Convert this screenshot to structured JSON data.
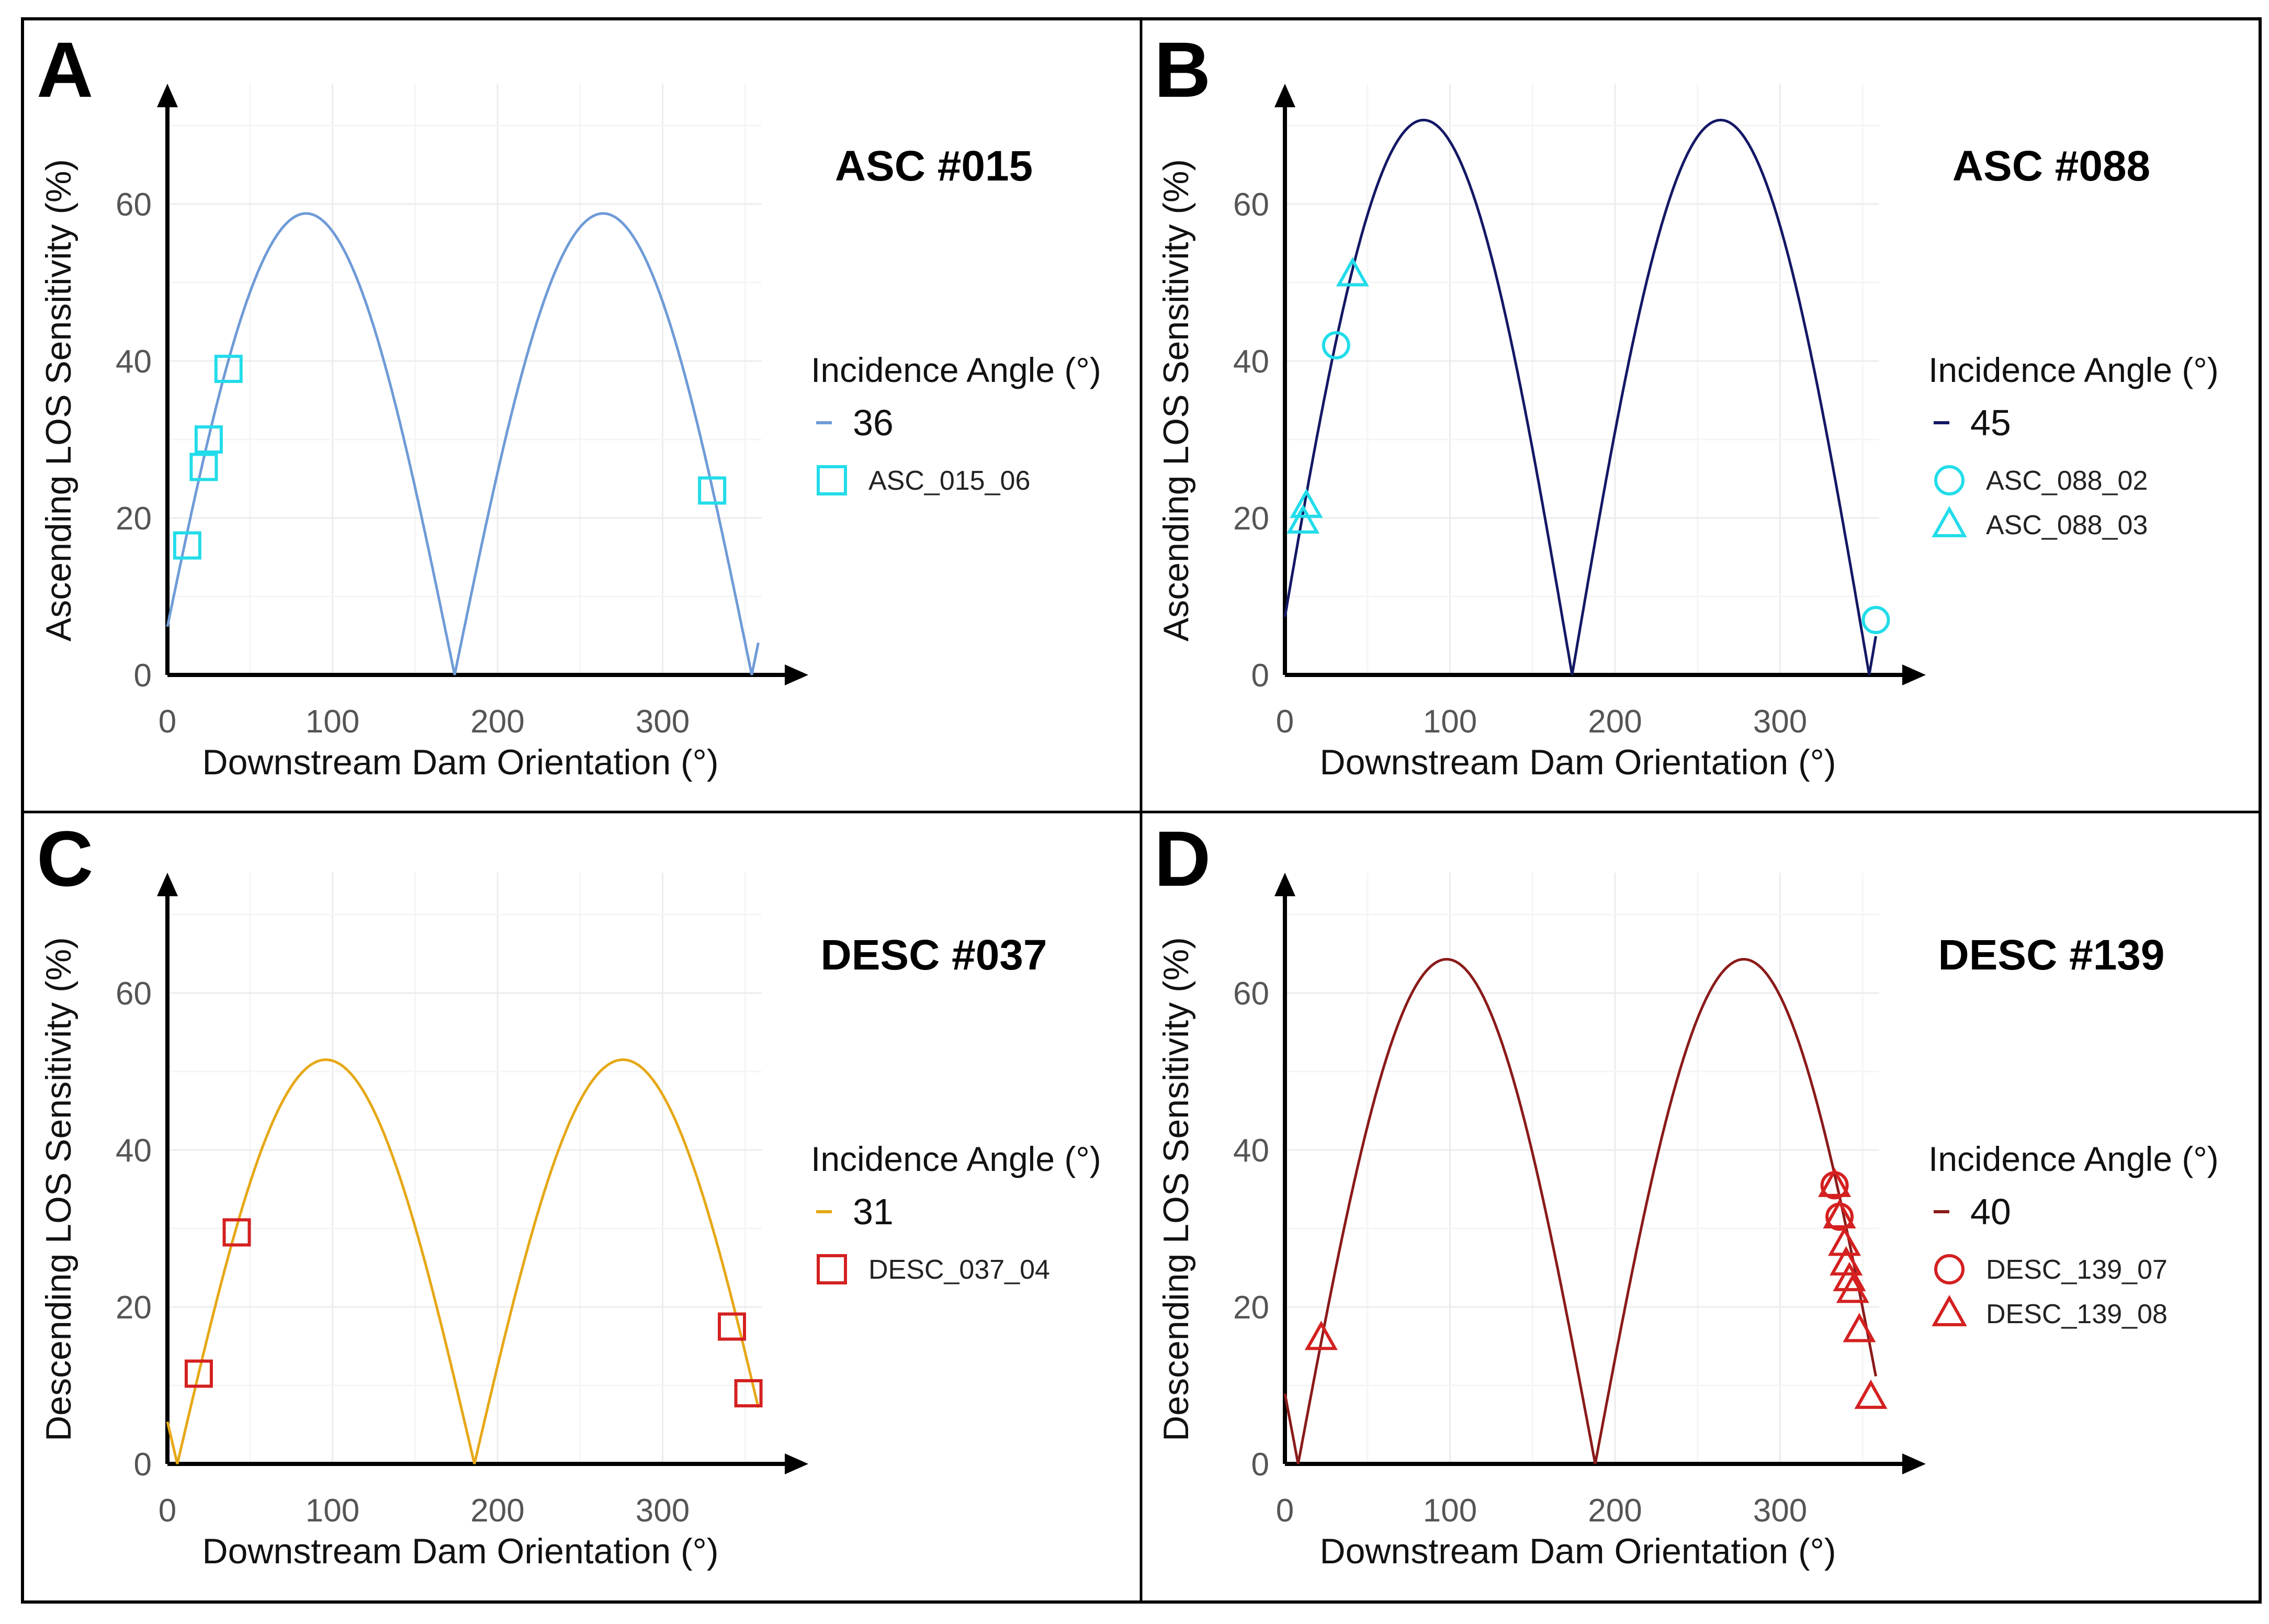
{
  "chart_data": [
    {
      "type": "line",
      "panel_letter": "A",
      "title": "ASC #015",
      "xlabel": "Downstream Dam Orientation (°)",
      "ylabel": "Ascending LOS Sensitivity (%)",
      "xticks": [
        0,
        100,
        200,
        300
      ],
      "yticks": [
        0,
        20,
        40,
        60
      ],
      "xlim": [
        0,
        360
      ],
      "ylim": [
        0,
        72
      ],
      "legend_title": "Incidence Angle (°)",
      "series": [
        {
          "name": "36",
          "color": "#6f9bd7",
          "amplitude": 58.8,
          "min_at": 174,
          "x_range": [
            0,
            358
          ]
        }
      ],
      "points": [
        {
          "label": "ASC_015_06",
          "marker": "square",
          "color": "#22dcea",
          "x": [
            12,
            22,
            25,
            37,
            330
          ],
          "y": [
            16.5,
            26.5,
            30,
            39,
            23.5
          ]
        }
      ]
    },
    {
      "type": "line",
      "panel_letter": "B",
      "title": "ASC #088",
      "xlabel": "Downstream Dam Orientation (°)",
      "ylabel": "Ascending LOS Sensitivity (%)",
      "xticks": [
        0,
        100,
        200,
        300
      ],
      "yticks": [
        0,
        20,
        40,
        60
      ],
      "xlim": [
        0,
        360
      ],
      "ylim": [
        0,
        72
      ],
      "legend_title": "Incidence Angle (°)",
      "series": [
        {
          "name": "45",
          "color": "#141865",
          "amplitude": 70.7,
          "min_at": 174,
          "x_range": [
            0,
            358
          ]
        }
      ],
      "points": [
        {
          "label": "ASC_088_02",
          "marker": "circle",
          "color": "#22dcea",
          "x": [
            31,
            358
          ],
          "y": [
            42,
            7
          ]
        },
        {
          "label": "ASC_088_03",
          "marker": "triangle",
          "color": "#22dcea",
          "x": [
            11,
            13,
            41
          ],
          "y": [
            19.5,
            21.5,
            51
          ]
        }
      ]
    },
    {
      "type": "line",
      "panel_letter": "C",
      "title": "DESC #037",
      "xlabel": "Downstream Dam Orientation (°)",
      "ylabel": "Descending LOS Sensitivity (%)",
      "xticks": [
        0,
        100,
        200,
        300
      ],
      "yticks": [
        0,
        20,
        40,
        60
      ],
      "xlim": [
        0,
        360
      ],
      "ylim": [
        0,
        72
      ],
      "legend_title": "Incidence Angle (°)",
      "series": [
        {
          "name": "31",
          "color": "#e6a817",
          "amplitude": 51.5,
          "min_at": 186,
          "x_range": [
            0,
            358
          ]
        }
      ],
      "points": [
        {
          "label": "DESC_037_04",
          "marker": "square",
          "color": "#d42020",
          "x": [
            19,
            42,
            342,
            352
          ],
          "y": [
            11.5,
            29.5,
            17.5,
            9
          ]
        }
      ]
    },
    {
      "type": "line",
      "panel_letter": "D",
      "title": "DESC #139",
      "xlabel": "Downstream Dam Orientation (°)",
      "ylabel": "Descending LOS Sensitivity (%)",
      "xticks": [
        0,
        100,
        200,
        300
      ],
      "yticks": [
        0,
        20,
        40,
        60
      ],
      "xlim": [
        0,
        360
      ],
      "ylim": [
        0,
        72
      ],
      "legend_title": "Incidence Angle (°)",
      "series": [
        {
          "name": "40",
          "color": "#8b1a1a",
          "amplitude": 64.3,
          "min_at": 188,
          "x_range": [
            0,
            358
          ]
        }
      ],
      "points": [
        {
          "label": "DESC_139_07",
          "marker": "circle",
          "color": "#d42020",
          "x": [
            333,
            336
          ],
          "y": [
            35.5,
            31.5
          ]
        },
        {
          "label": "DESC_139_08",
          "marker": "triangle",
          "color": "#d42020",
          "x": [
            22,
            333,
            336,
            339,
            340,
            342,
            344,
            348,
            355
          ],
          "y": [
            16,
            35.5,
            31.5,
            28,
            25.5,
            23.5,
            22,
            17,
            8.5
          ]
        }
      ]
    }
  ]
}
